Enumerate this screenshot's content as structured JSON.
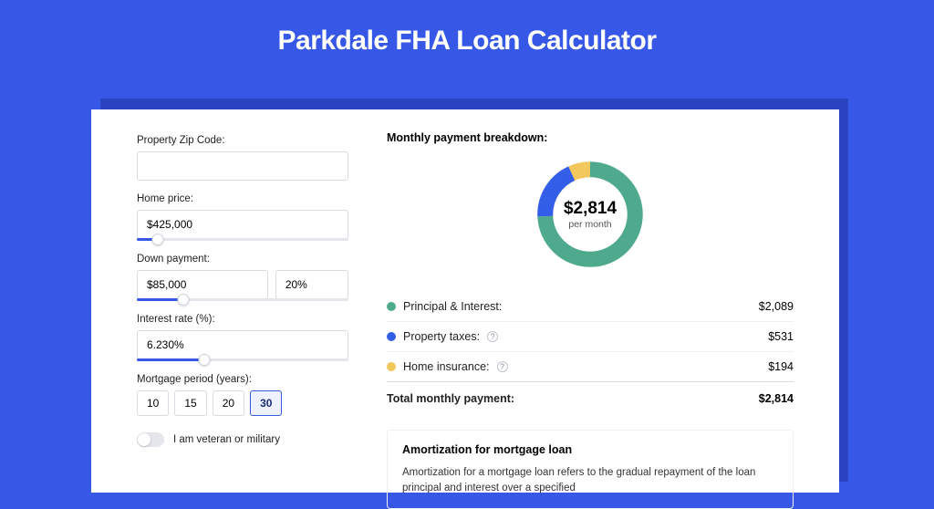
{
  "title": "Parkdale FHA Loan Calculator",
  "colors": {
    "page_bg": "#3757e6",
    "shadow": "#2a44c4",
    "accent": "#3757e6"
  },
  "form": {
    "zip": {
      "label": "Property Zip Code:",
      "value": ""
    },
    "homePrice": {
      "label": "Home price:",
      "value": "$425,000",
      "slider_pct": 10
    },
    "downPayment": {
      "label": "Down payment:",
      "amount": "$85,000",
      "pct": "20%",
      "slider_pct": 22
    },
    "interest": {
      "label": "Interest rate (%):",
      "value": "6.230%",
      "slider_pct": 32
    },
    "period": {
      "label": "Mortgage period (years):",
      "options": [
        "10",
        "15",
        "20",
        "30"
      ],
      "selected": "30"
    },
    "veteran": {
      "label": "I am veteran or military",
      "checked": false
    }
  },
  "breakdown": {
    "heading": "Monthly payment breakdown:",
    "total_amount": "$2,814",
    "total_sub": "per month",
    "items": [
      {
        "label": "Principal & Interest:",
        "value": "$2,089",
        "color": "#4faa8d",
        "pct": 74.2,
        "help": false
      },
      {
        "label": "Property taxes:",
        "value": "$531",
        "color": "#335ee8",
        "pct": 18.9,
        "help": true
      },
      {
        "label": "Home insurance:",
        "value": "$194",
        "color": "#f2c75c",
        "pct": 6.9,
        "help": true
      }
    ],
    "total_row": {
      "label": "Total monthly payment:",
      "value": "$2,814"
    },
    "donut": {
      "stroke_width": 18,
      "bg": "#ffffff"
    }
  },
  "amortization": {
    "heading": "Amortization for mortgage loan",
    "body": "Amortization for a mortgage loan refers to the gradual repayment of the loan principal and interest over a specified"
  }
}
